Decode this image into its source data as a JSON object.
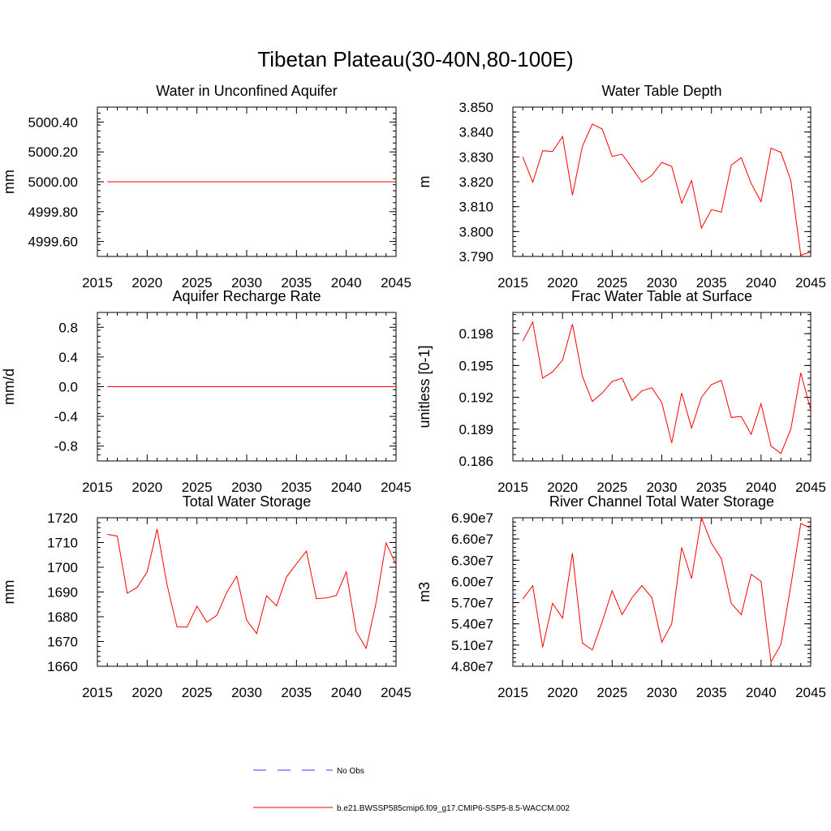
{
  "page_title": "Tibetan Plateau(30-40N,80-100E)",
  "colors": {
    "model_line": "#ff0000",
    "obs_line": "#3b3bff",
    "frame": "#000000"
  },
  "legend": {
    "obs_label": "No Obs",
    "model_label": "b.e21.BWSSP585cmip6.f09_g17.CMIP6-SSP5-8.5-WACCM.002"
  },
  "chart_data": [
    {
      "type": "line",
      "title": "Water in Unconfined Aquifer",
      "ylabel": "mm",
      "xlim": [
        2015,
        2045
      ],
      "ylim": [
        4999.5,
        5000.5
      ],
      "x_ticks": [
        "2015",
        "2020",
        "2025",
        "2030",
        "2035",
        "2040",
        "2045"
      ],
      "y_ticks": [
        {
          "v": 4999.6,
          "label": "4999.60"
        },
        {
          "v": 4999.8,
          "label": "4999.80"
        },
        {
          "v": 5000.0,
          "label": "5000.00"
        },
        {
          "v": 5000.2,
          "label": "5000.20"
        },
        {
          "v": 5000.4,
          "label": "5000.40"
        }
      ],
      "x": [
        2016,
        2017,
        2018,
        2019,
        2020,
        2021,
        2022,
        2023,
        2024,
        2025,
        2026,
        2027,
        2028,
        2029,
        2030,
        2031,
        2032,
        2033,
        2034,
        2035,
        2036,
        2037,
        2038,
        2039,
        2040,
        2041,
        2042,
        2043,
        2044,
        2045
      ],
      "values": [
        5000,
        5000,
        5000,
        5000,
        5000,
        5000,
        5000,
        5000,
        5000,
        5000,
        5000,
        5000,
        5000,
        5000,
        5000,
        5000,
        5000,
        5000,
        5000,
        5000,
        5000,
        5000,
        5000,
        5000,
        5000,
        5000,
        5000,
        5000,
        5000,
        5000
      ]
    },
    {
      "type": "line",
      "title": "Water Table Depth",
      "ylabel": "m",
      "xlim": [
        2015,
        2045
      ],
      "ylim": [
        3.79,
        3.85
      ],
      "x_ticks": [
        "2015",
        "2020",
        "2025",
        "2030",
        "2035",
        "2040",
        "2045"
      ],
      "y_ticks": [
        {
          "v": 3.79,
          "label": "3.790"
        },
        {
          "v": 3.8,
          "label": "3.800"
        },
        {
          "v": 3.81,
          "label": "3.810"
        },
        {
          "v": 3.82,
          "label": "3.820"
        },
        {
          "v": 3.83,
          "label": "3.830"
        },
        {
          "v": 3.84,
          "label": "3.840"
        },
        {
          "v": 3.85,
          "label": "3.850"
        }
      ],
      "x": [
        2016,
        2017,
        2018,
        2019,
        2020,
        2021,
        2022,
        2023,
        2024,
        2025,
        2026,
        2027,
        2028,
        2029,
        2030,
        2031,
        2032,
        2033,
        2034,
        2035,
        2036,
        2037,
        2038,
        2039,
        2040,
        2041,
        2042,
        2043,
        2044,
        2045
      ],
      "values": [
        3.83,
        3.8198,
        3.8325,
        3.8322,
        3.8382,
        3.8146,
        3.8342,
        3.8432,
        3.8412,
        3.8302,
        3.8311,
        3.8255,
        3.8198,
        3.8226,
        3.8278,
        3.8262,
        3.8114,
        3.8205,
        3.8014,
        3.8088,
        3.8078,
        3.8267,
        3.8297,
        3.8193,
        3.812,
        3.8335,
        3.8318,
        3.8205,
        3.7905,
        3.7918
      ]
    },
    {
      "type": "line",
      "title": "Aquifer Recharge Rate",
      "ylabel": "mm/d",
      "xlim": [
        2015,
        2045
      ],
      "ylim": [
        -1.0,
        1.0
      ],
      "x_ticks": [
        "2015",
        "2020",
        "2025",
        "2030",
        "2035",
        "2040",
        "2045"
      ],
      "y_ticks": [
        {
          "v": -0.8,
          "label": "-0.8"
        },
        {
          "v": -0.4,
          "label": "-0.4"
        },
        {
          "v": 0.0,
          "label": "0.0"
        },
        {
          "v": 0.4,
          "label": "0.4"
        },
        {
          "v": 0.8,
          "label": "0.8"
        }
      ],
      "x": [
        2016,
        2017,
        2018,
        2019,
        2020,
        2021,
        2022,
        2023,
        2024,
        2025,
        2026,
        2027,
        2028,
        2029,
        2030,
        2031,
        2032,
        2033,
        2034,
        2035,
        2036,
        2037,
        2038,
        2039,
        2040,
        2041,
        2042,
        2043,
        2044,
        2045
      ],
      "values": [
        0,
        0,
        0,
        0,
        0,
        0,
        0,
        0,
        0,
        0,
        0,
        0,
        0,
        0,
        0,
        0,
        0,
        0,
        0,
        0,
        0,
        0,
        0,
        0,
        0,
        0,
        0,
        0,
        0,
        0
      ]
    },
    {
      "type": "line",
      "title": "Frac Water Table at Surface",
      "ylabel": "unitless [0-1]",
      "xlim": [
        2015,
        2045
      ],
      "ylim": [
        0.186,
        0.2
      ],
      "x_ticks": [
        "2015",
        "2020",
        "2025",
        "2030",
        "2035",
        "2040",
        "2045"
      ],
      "y_ticks": [
        {
          "v": 0.186,
          "label": "0.186"
        },
        {
          "v": 0.189,
          "label": "0.189"
        },
        {
          "v": 0.192,
          "label": "0.192"
        },
        {
          "v": 0.195,
          "label": "0.195"
        },
        {
          "v": 0.198,
          "label": "0.198"
        }
      ],
      "x": [
        2016,
        2017,
        2018,
        2019,
        2020,
        2021,
        2022,
        2023,
        2024,
        2025,
        2026,
        2027,
        2028,
        2029,
        2030,
        2031,
        2032,
        2033,
        2034,
        2035,
        2036,
        2037,
        2038,
        2039,
        2040,
        2041,
        2042,
        2043,
        2044,
        2045
      ],
      "values": [
        0.1973,
        0.1991,
        0.1938,
        0.1944,
        0.1955,
        0.1989,
        0.194,
        0.1916,
        0.1924,
        0.1935,
        0.1938,
        0.1917,
        0.1926,
        0.1929,
        0.1915,
        0.1877,
        0.1924,
        0.1891,
        0.192,
        0.1932,
        0.1936,
        0.1901,
        0.1902,
        0.1885,
        0.1914,
        0.1874,
        0.1867,
        0.189,
        0.1943,
        0.1908
      ]
    },
    {
      "type": "line",
      "title": "Total Water Storage",
      "ylabel": "mm",
      "xlim": [
        2015,
        2045
      ],
      "ylim": [
        1660,
        1720
      ],
      "x_ticks": [
        "2015",
        "2020",
        "2025",
        "2030",
        "2035",
        "2040",
        "2045"
      ],
      "y_ticks": [
        {
          "v": 1660,
          "label": "1660"
        },
        {
          "v": 1670,
          "label": "1670"
        },
        {
          "v": 1680,
          "label": "1680"
        },
        {
          "v": 1690,
          "label": "1690"
        },
        {
          "v": 1700,
          "label": "1700"
        },
        {
          "v": 1710,
          "label": "1710"
        },
        {
          "v": 1720,
          "label": "1720"
        }
      ],
      "x": [
        2016,
        2017,
        2018,
        2019,
        2020,
        2021,
        2022,
        2023,
        2024,
        2025,
        2026,
        2027,
        2028,
        2029,
        2030,
        2031,
        2032,
        2033,
        2034,
        2035,
        2036,
        2037,
        2038,
        2039,
        2040,
        2041,
        2042,
        2043,
        2044,
        2045
      ],
      "values": [
        1713.3,
        1712.6,
        1689.5,
        1691.9,
        1698.1,
        1715.4,
        1692.9,
        1675.9,
        1675.8,
        1684.3,
        1677.8,
        1680.6,
        1689.9,
        1696.4,
        1678.6,
        1673.2,
        1688.5,
        1684.4,
        1696.1,
        1701.4,
        1706.5,
        1687.3,
        1687.6,
        1688.6,
        1698.1,
        1674.1,
        1667.2,
        1685.8,
        1709.8,
        1701.1
      ]
    },
    {
      "type": "line",
      "title": "River Channel Total Water Storage",
      "ylabel": "m3",
      "xlim": [
        2015,
        2045
      ],
      "ylim": [
        48000000,
        69000000
      ],
      "x_ticks": [
        "2015",
        "2020",
        "2025",
        "2030",
        "2035",
        "2040",
        "2045"
      ],
      "y_ticks": [
        {
          "v": 48000000,
          "label": "4.80e7"
        },
        {
          "v": 51000000,
          "label": "5.10e7"
        },
        {
          "v": 54000000,
          "label": "5.40e7"
        },
        {
          "v": 57000000,
          "label": "5.70e7"
        },
        {
          "v": 60000000,
          "label": "6.00e7"
        },
        {
          "v": 63000000,
          "label": "6.30e7"
        },
        {
          "v": 66000000,
          "label": "6.60e7"
        },
        {
          "v": 69000000,
          "label": "6.90e7"
        }
      ],
      "x": [
        2016,
        2017,
        2018,
        2019,
        2020,
        2021,
        2022,
        2023,
        2024,
        2025,
        2026,
        2027,
        2028,
        2029,
        2030,
        2031,
        2032,
        2033,
        2034,
        2035,
        2036,
        2037,
        2038,
        2039,
        2040,
        2041,
        2042,
        2043,
        2044,
        2045
      ],
      "values": [
        57500000,
        59400000,
        50700000,
        56900000,
        54800000,
        64000000,
        51300000,
        50300000,
        54300000,
        58700000,
        55300000,
        57700000,
        59400000,
        57700000,
        51400000,
        54000000,
        64800000,
        60400000,
        69000000,
        65400000,
        63200000,
        56900000,
        55300000,
        61000000,
        60000000,
        48600000,
        51100000,
        59400000,
        68200000,
        67500000
      ]
    }
  ]
}
